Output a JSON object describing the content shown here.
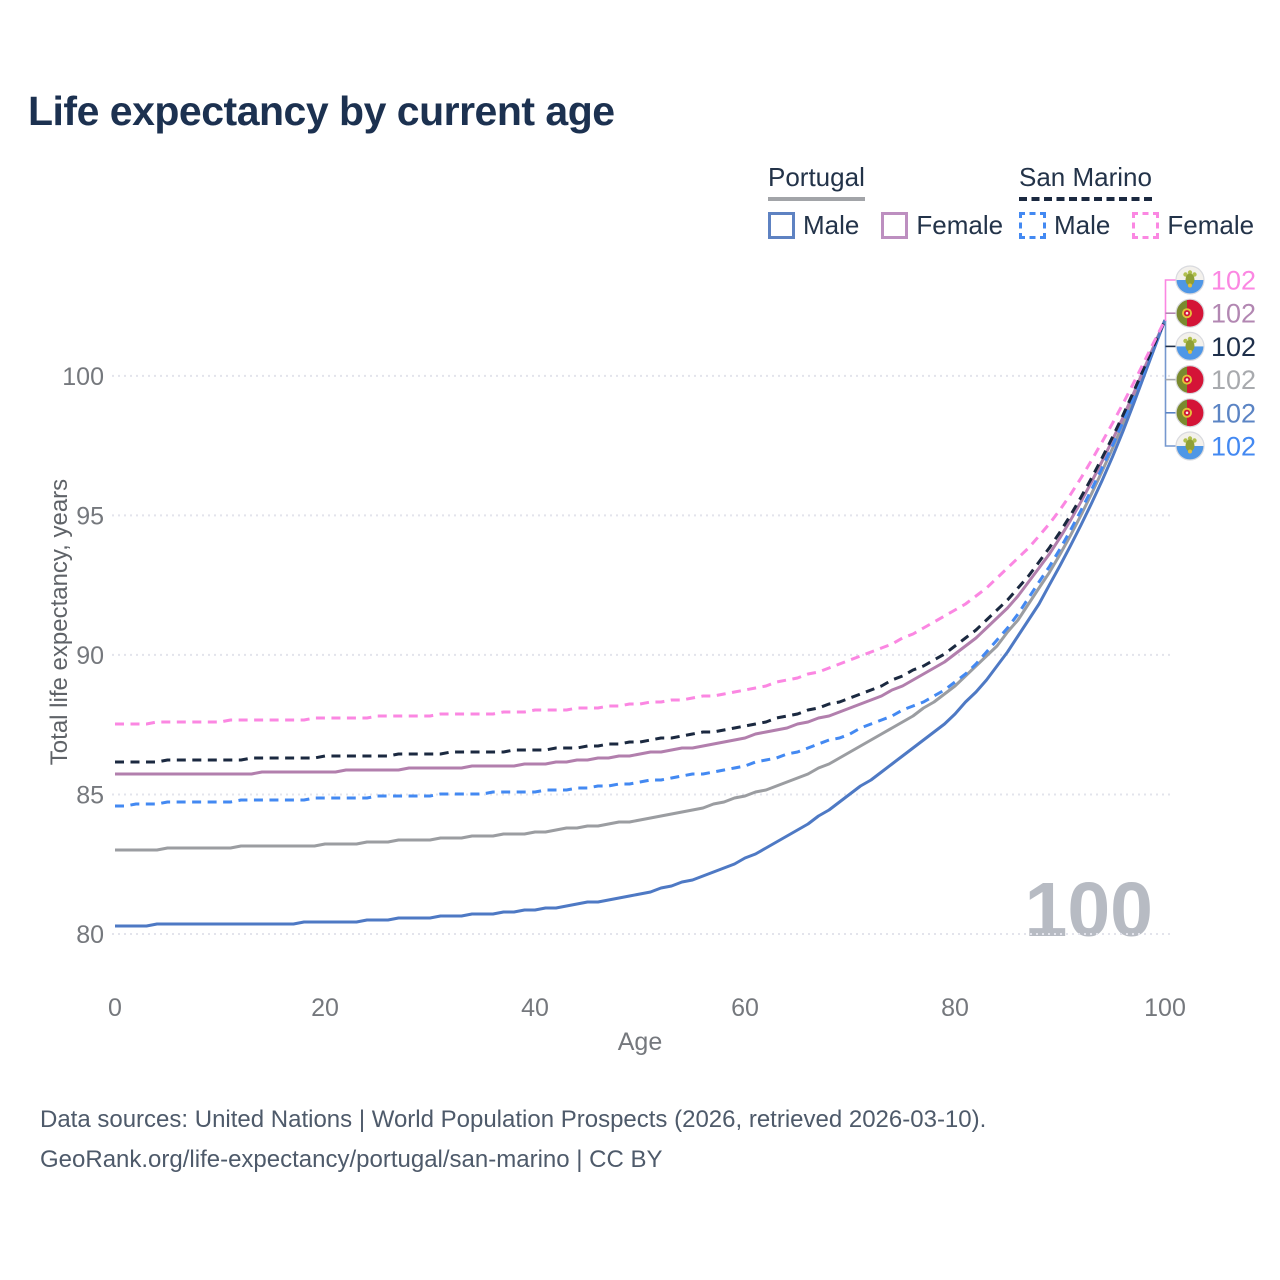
{
  "title": "Life expectancy by current age",
  "watermark_age": "100",
  "legend": {
    "groups": [
      {
        "country": "Portugal",
        "line_style": "solid",
        "underline_color": "#a2a4a8",
        "items": [
          {
            "label": "Male",
            "color": "#5e82c2",
            "dashed": false
          },
          {
            "label": "Female",
            "color": "#bd8fc0",
            "dashed": false
          }
        ]
      },
      {
        "country": "San Marino",
        "line_style": "dashed",
        "underline_color": "#1b2940",
        "items": [
          {
            "label": "Male",
            "color": "#4389f2",
            "dashed": true
          },
          {
            "label": "Female",
            "color": "#fb87e2",
            "dashed": true
          }
        ]
      }
    ]
  },
  "footer": {
    "line1": "Data sources: United Nations | World Population Prospects (2026, retrieved 2026-03-10).",
    "line2": "GeoRank.org/life-expectancy/portugal/san-marino | CC BY"
  },
  "chart_data": {
    "type": "line",
    "title": "Life expectancy by current age",
    "xlabel": "Age",
    "ylabel": "Total life expectancy, years",
    "x_ticks": [
      0,
      20,
      40,
      60,
      80,
      100
    ],
    "y_ticks": [
      80,
      85,
      90,
      95,
      100
    ],
    "xlim": [
      0,
      100
    ],
    "ylim": [
      79.7,
      102.6
    ],
    "grid": "horizontal-dotted",
    "legend_position": "top-right",
    "x": [
      0,
      5,
      10,
      15,
      20,
      25,
      30,
      35,
      40,
      45,
      50,
      55,
      60,
      65,
      70,
      75,
      80,
      85,
      90,
      95,
      100
    ],
    "series": [
      {
        "id": "portugal-both",
        "name": "Portugal — Both sexes",
        "color": "#9b9da1",
        "dash": false,
        "values": [
          83.0,
          83.05,
          83.1,
          83.15,
          83.2,
          83.3,
          83.4,
          83.5,
          83.65,
          83.85,
          84.1,
          84.45,
          84.95,
          85.6,
          86.5,
          87.6,
          88.9,
          90.8,
          93.6,
          97.4,
          102
        ]
      },
      {
        "id": "portugal-female",
        "name": "Portugal — Female",
        "color": "#b27fad",
        "dash": false,
        "values": [
          85.7,
          85.72,
          85.75,
          85.78,
          85.82,
          85.88,
          85.94,
          86.0,
          86.1,
          86.25,
          86.45,
          86.7,
          87.05,
          87.5,
          88.1,
          88.9,
          90.0,
          91.7,
          94.2,
          97.7,
          102
        ]
      },
      {
        "id": "portugal-male",
        "name": "Portugal — Male",
        "color": "#4e79c4",
        "dash": false,
        "values": [
          80.3,
          80.33,
          80.36,
          80.38,
          80.42,
          80.5,
          80.6,
          80.72,
          80.88,
          81.12,
          81.45,
          81.95,
          82.7,
          83.7,
          85.0,
          86.4,
          87.9,
          90.1,
          93.2,
          97.1,
          102
        ]
      },
      {
        "id": "san-marino-male",
        "name": "San Marino — Male",
        "color": "#4389f2",
        "dash": true,
        "values": [
          84.6,
          84.7,
          84.75,
          84.8,
          84.85,
          84.92,
          84.98,
          85.05,
          85.12,
          85.25,
          85.45,
          85.7,
          86.05,
          86.55,
          87.2,
          88.0,
          89.0,
          91.0,
          93.8,
          97.5,
          102
        ]
      },
      {
        "id": "san-marino-both",
        "name": "San Marino — Both sexes",
        "color": "#1b2940",
        "dash": true,
        "values": [
          86.15,
          86.2,
          86.25,
          86.3,
          86.35,
          86.4,
          86.47,
          86.53,
          86.6,
          86.72,
          86.9,
          87.15,
          87.45,
          87.9,
          88.45,
          89.25,
          90.3,
          92.0,
          94.4,
          97.8,
          102
        ]
      },
      {
        "id": "san-marino-female",
        "name": "San Marino — Female",
        "color": "#fb87e2",
        "dash": true,
        "values": [
          87.5,
          87.58,
          87.63,
          87.68,
          87.72,
          87.78,
          87.84,
          87.9,
          88.0,
          88.1,
          88.25,
          88.45,
          88.75,
          89.2,
          89.8,
          90.6,
          91.6,
          93.1,
          95.2,
          98.3,
          102
        ]
      }
    ],
    "end_labels": [
      {
        "flag": "san-marino",
        "value": "102",
        "color": "#fb87e2"
      },
      {
        "flag": "portugal",
        "value": "102",
        "color": "#b287b2"
      },
      {
        "flag": "san-marino",
        "value": "102",
        "color": "#1e2f4a"
      },
      {
        "flag": "portugal",
        "value": "102",
        "color": "#a8aaae"
      },
      {
        "flag": "portugal",
        "value": "102",
        "color": "#5b84c4"
      },
      {
        "flag": "san-marino",
        "value": "102",
        "color": "#4389f2"
      }
    ]
  }
}
